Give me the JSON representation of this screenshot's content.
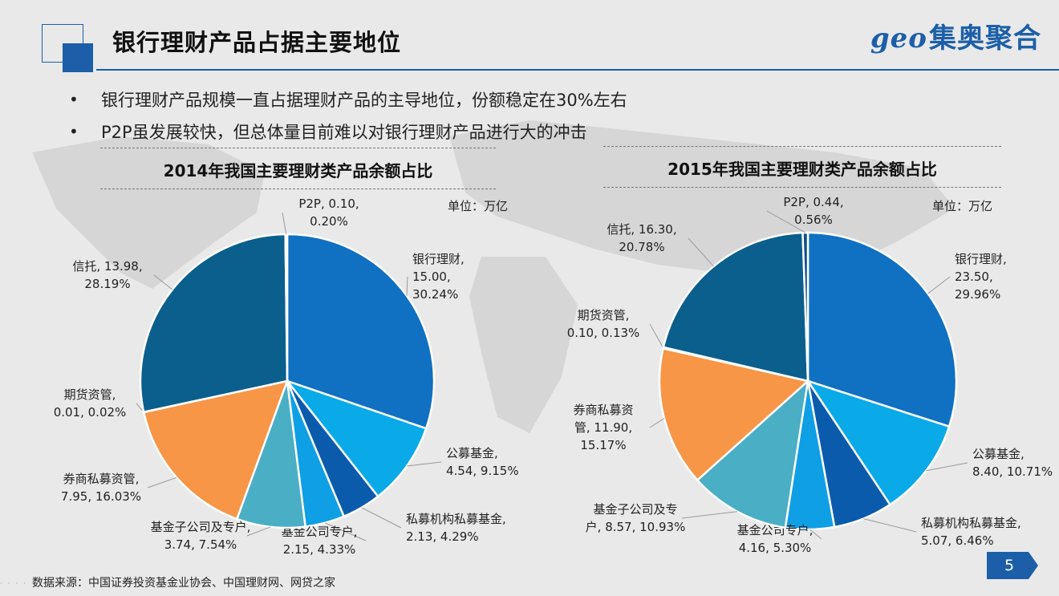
{
  "header": {
    "title": "银行理财产品占据主要地位",
    "brand_latin": "geo",
    "brand_cn": "集奥聚合"
  },
  "bullets": [
    "银行理财产品规模一直占据理财产品的主导地位，份额稳定在30%左右",
    "P2P虽发展较快，但总体量目前难以对银行理财产品进行大的冲击"
  ],
  "bullet_marker": "•",
  "unit_label": "单位：万亿",
  "source": "数据来源：中国证券投资基金业协会、中国理财网、网贷之家",
  "page_number": "5",
  "colors": {
    "brand_blue": "#1c5fa8",
    "bank": "#1070c1",
    "fund": "#0aa9e8",
    "private_fund": "#0b5bad",
    "fund_company": "#0f9fe5",
    "fund_sub": "#4aaec5",
    "broker": "#f79646",
    "futures": "#2f6ea6",
    "trust": "#0a5f8c",
    "p2p": "#0c4f8a"
  },
  "chart_data": [
    {
      "type": "pie",
      "title": "2014年我国主要理财类产品余额占比",
      "unit": "万亿",
      "slices": [
        {
          "name": "银行理财",
          "value": 15.0,
          "percent": "30.24%",
          "label_lines": [
            "银行理财,",
            "15.00,",
            "30.24%"
          ],
          "color": "#1070c1"
        },
        {
          "name": "公募基金",
          "value": 4.54,
          "percent": "9.15%",
          "label_lines": [
            "公募基金,",
            "4.54, 9.15%"
          ],
          "color": "#0aa9e8"
        },
        {
          "name": "私募机构私募基金",
          "value": 2.13,
          "percent": "4.29%",
          "label_lines": [
            "私募机构私募基金,",
            "2.13, 4.29%"
          ],
          "color": "#0b5bad"
        },
        {
          "name": "基金公司专户",
          "value": 2.15,
          "percent": "4.33%",
          "label_lines": [
            "基金公司专户,",
            "2.15, 4.33%"
          ],
          "color": "#0f9fe5"
        },
        {
          "name": "基金子公司及专户",
          "value": 3.74,
          "percent": "7.54%",
          "label_lines": [
            "基金子公司及专户,",
            "3.74, 7.54%"
          ],
          "color": "#4aaec5"
        },
        {
          "name": "券商私募资管",
          "value": 7.95,
          "percent": "16.03%",
          "label_lines": [
            "券商私募资管,",
            "7.95, 16.03%"
          ],
          "color": "#f79646"
        },
        {
          "name": "期货资管",
          "value": 0.01,
          "percent": "0.02%",
          "label_lines": [
            "期货资管,",
            "0.01, 0.02%"
          ],
          "color": "#2f6ea6"
        },
        {
          "name": "信托",
          "value": 13.98,
          "percent": "28.19%",
          "label_lines": [
            "信托, 13.98,",
            "28.19%"
          ],
          "color": "#0a5f8c"
        },
        {
          "name": "P2P",
          "value": 0.1,
          "percent": "0.20%",
          "label_lines": [
            "P2P, 0.10,",
            "0.20%"
          ],
          "color": "#0c4f8a"
        }
      ]
    },
    {
      "type": "pie",
      "title": "2015年我国主要理财类产品余额占比",
      "unit": "万亿",
      "slices": [
        {
          "name": "银行理财",
          "value": 23.5,
          "percent": "29.96%",
          "label_lines": [
            "银行理财,",
            "23.50,",
            "29.96%"
          ],
          "color": "#1070c1"
        },
        {
          "name": "公募基金",
          "value": 8.4,
          "percent": "10.71%",
          "label_lines": [
            "公募基金,",
            "8.40, 10.71%"
          ],
          "color": "#0aa9e8"
        },
        {
          "name": "私募机构私募基金",
          "value": 5.07,
          "percent": "6.46%",
          "label_lines": [
            "私募机构私募基金,",
            "5.07, 6.46%"
          ],
          "color": "#0b5bad"
        },
        {
          "name": "基金公司专户",
          "value": 4.16,
          "percent": "5.30%",
          "label_lines": [
            "基金公司专户,",
            "4.16, 5.30%"
          ],
          "color": "#0f9fe5"
        },
        {
          "name": "基金子公司及专户",
          "value": 8.57,
          "percent": "10.93%",
          "label_lines": [
            "基金子公司及专",
            "户, 8.57, 10.93%"
          ],
          "color": "#4aaec5"
        },
        {
          "name": "券商私募资管",
          "value": 11.9,
          "percent": "15.17%",
          "label_lines": [
            "券商私募资",
            "管, 11.90,",
            "15.17%"
          ],
          "color": "#f79646"
        },
        {
          "name": "期货资管",
          "value": 0.1,
          "percent": "0.13%",
          "label_lines": [
            "期货资管,",
            "0.10, 0.13%"
          ],
          "color": "#2f6ea6"
        },
        {
          "name": "信托",
          "value": 16.3,
          "percent": "20.78%",
          "label_lines": [
            "信托, 16.30,",
            "20.78%"
          ],
          "color": "#0a5f8c"
        },
        {
          "name": "P2P",
          "value": 0.44,
          "percent": "0.56%",
          "label_lines": [
            "P2P, 0.44,",
            "0.56%"
          ],
          "color": "#0c4f8a"
        }
      ]
    }
  ]
}
